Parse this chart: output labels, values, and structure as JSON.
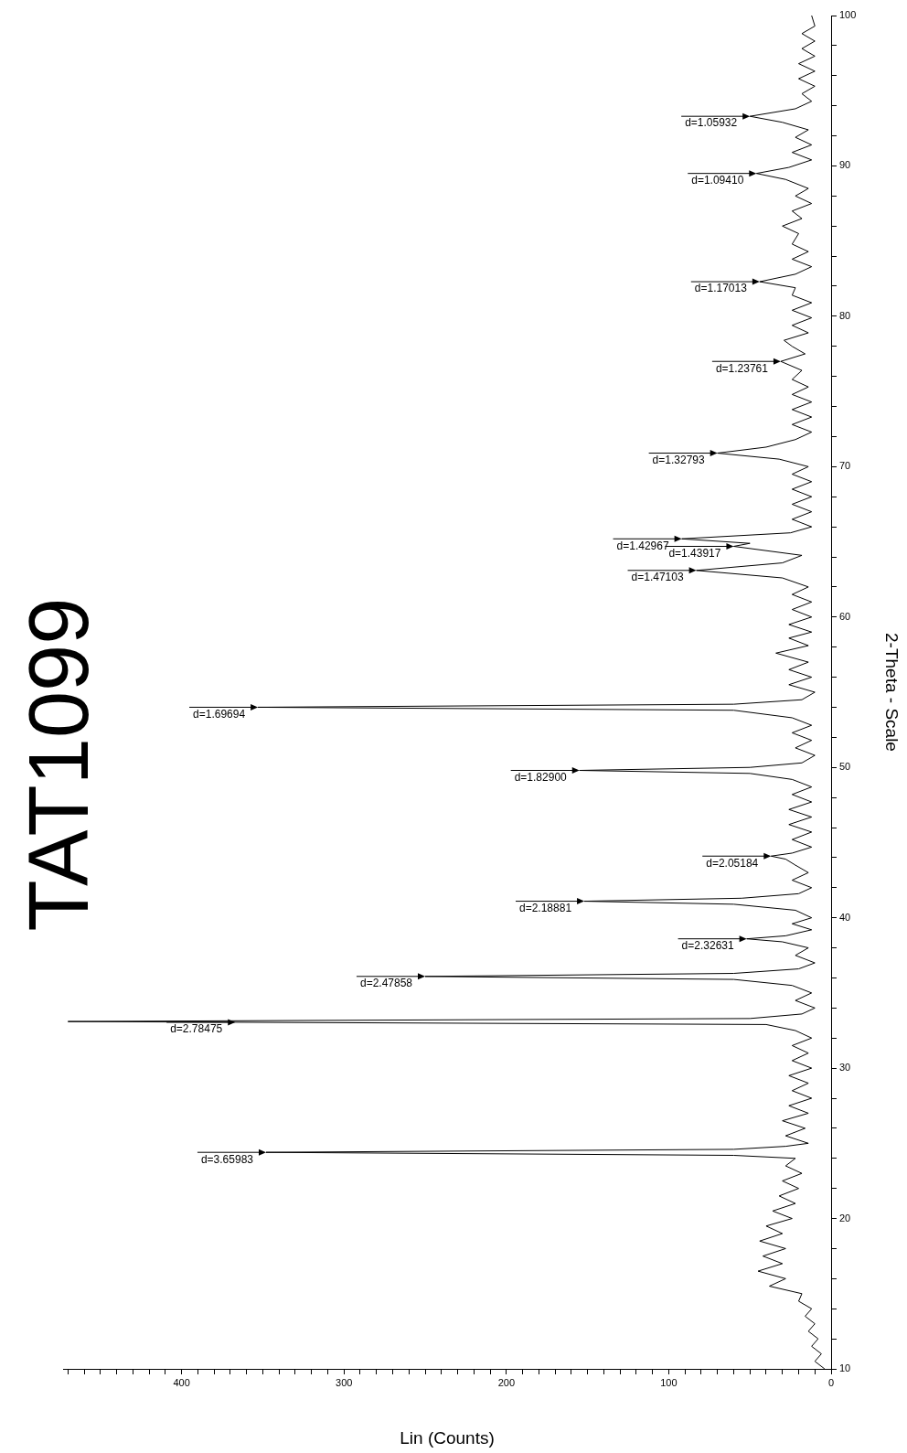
{
  "chart_data": {
    "type": "line",
    "orientation": "horizontal",
    "title": "TAT1099",
    "xlabel": "Lin (Counts)",
    "ylabel": "2-Theta - Scale",
    "color": "#000000",
    "marker": "none",
    "xlim": [
      473,
      0
    ],
    "ylim": [
      10,
      100
    ],
    "yticks": [
      10,
      {
        "value": 12,
        "label": null
      },
      {
        "value": 14,
        "label": null
      },
      {
        "value": 16,
        "label": null
      },
      {
        "value": 18,
        "label": null
      },
      20,
      {
        "value": 22,
        "label": null
      },
      {
        "value": 24,
        "label": null
      },
      {
        "value": 26,
        "label": null
      },
      {
        "value": 28,
        "label": null
      },
      30,
      {
        "value": 32,
        "label": null
      },
      {
        "value": 34,
        "label": null
      },
      {
        "value": 36,
        "label": null
      },
      {
        "value": 38,
        "label": null
      },
      40,
      {
        "value": 42,
        "label": null
      },
      {
        "value": 44,
        "label": null
      },
      {
        "value": 46,
        "label": null
      },
      {
        "value": 48,
        "label": null
      },
      50,
      {
        "value": 52,
        "label": null
      },
      {
        "value": 54,
        "label": null
      },
      {
        "value": 56,
        "label": null
      },
      {
        "value": 58,
        "label": null
      },
      60,
      {
        "value": 62,
        "label": null
      },
      {
        "value": 64,
        "label": null
      },
      {
        "value": 66,
        "label": null
      },
      {
        "value": 68,
        "label": null
      },
      70,
      {
        "value": 72,
        "label": null
      },
      {
        "value": 74,
        "label": null
      },
      {
        "value": 76,
        "label": null
      },
      {
        "value": 78,
        "label": null
      },
      80,
      {
        "value": 82,
        "label": null
      },
      {
        "value": 84,
        "label": null
      },
      {
        "value": 86,
        "label": null
      },
      {
        "value": 88,
        "label": null
      },
      90,
      {
        "value": 92,
        "label": null
      },
      {
        "value": 94,
        "label": null
      },
      {
        "value": 96,
        "label": null
      },
      {
        "value": 98,
        "label": null
      },
      100
    ],
    "xticks": [
      0,
      {
        "value": 10,
        "label": null
      },
      {
        "value": 20,
        "label": null
      },
      {
        "value": 30,
        "label": null
      },
      {
        "value": 40,
        "label": null
      },
      {
        "value": 50,
        "label": null
      },
      {
        "value": 60,
        "label": null
      },
      {
        "value": 70,
        "label": null
      },
      {
        "value": 80,
        "label": null
      },
      {
        "value": 90,
        "label": null
      },
      100,
      {
        "value": 110,
        "label": null
      },
      {
        "value": 120,
        "label": null
      },
      {
        "value": 130,
        "label": null
      },
      {
        "value": 140,
        "label": null
      },
      {
        "value": 150,
        "label": null
      },
      {
        "value": 160,
        "label": null
      },
      {
        "value": 170,
        "label": null
      },
      {
        "value": 180,
        "label": null
      },
      {
        "value": 190,
        "label": null
      },
      200,
      {
        "value": 210,
        "label": null
      },
      {
        "value": 220,
        "label": null
      },
      {
        "value": 230,
        "label": null
      },
      {
        "value": 240,
        "label": null
      },
      {
        "value": 250,
        "label": null
      },
      {
        "value": 260,
        "label": null
      },
      {
        "value": 270,
        "label": null
      },
      {
        "value": 280,
        "label": null
      },
      {
        "value": 290,
        "label": null
      },
      300,
      {
        "value": 310,
        "label": null
      },
      {
        "value": 320,
        "label": null
      },
      {
        "value": 330,
        "label": null
      },
      {
        "value": 340,
        "label": null
      },
      {
        "value": 350,
        "label": null
      },
      {
        "value": 360,
        "label": null
      },
      {
        "value": 370,
        "label": null
      },
      {
        "value": 380,
        "label": null
      },
      {
        "value": 390,
        "label": null
      },
      400,
      {
        "value": 410,
        "label": null
      },
      {
        "value": 420,
        "label": null
      },
      {
        "value": 430,
        "label": null
      },
      {
        "value": 440,
        "label": null
      },
      {
        "value": 450,
        "label": null
      },
      {
        "value": 460,
        "label": null
      },
      {
        "value": 470,
        "label": null
      }
    ],
    "x": [
      10,
      10.5,
      11,
      11.5,
      12,
      12.5,
      13,
      13.5,
      14,
      14.5,
      15,
      15.5,
      16,
      16.5,
      17,
      17.5,
      18,
      18.5,
      19,
      19.5,
      20,
      20.5,
      21,
      21.5,
      22,
      22.5,
      23,
      23.5,
      24,
      24.2,
      24.4,
      24.6,
      24.8,
      25,
      25.5,
      26,
      26.5,
      27,
      27.5,
      28,
      28.5,
      29,
      29.5,
      30,
      30.5,
      31,
      31.5,
      32,
      32.5,
      32.9,
      33.1,
      33.3,
      33.6,
      34,
      34.5,
      35,
      35.5,
      35.9,
      36.1,
      36.3,
      36.6,
      37,
      37.5,
      38,
      38.4,
      38.6,
      38.8,
      39.2,
      39.6,
      40,
      40.5,
      40.9,
      41.1,
      41.3,
      41.6,
      42,
      42.5,
      43,
      43.5,
      43.9,
      44.1,
      44.3,
      44.7,
      45.2,
      45.7,
      46.2,
      46.7,
      47.2,
      47.7,
      48.2,
      48.7,
      49.2,
      49.6,
      49.8,
      50,
      50.3,
      50.8,
      51.3,
      51.8,
      52.3,
      52.8,
      53.3,
      53.8,
      54,
      54.2,
      54.5,
      55,
      55.5,
      56,
      56.5,
      57,
      57.6,
      58.1,
      58.6,
      59,
      59.5,
      60,
      60.5,
      61,
      61.5,
      62,
      62.6,
      63.1,
      63.6,
      64.1,
      64.7,
      64.9,
      65.2,
      65.6,
      66,
      66.5,
      67,
      67.5,
      68,
      68.5,
      69,
      69.5,
      70,
      70.5,
      70.9,
      71.3,
      71.8,
      72.3,
      72.8,
      73.3,
      73.8,
      74.3,
      74.8,
      75.3,
      75.8,
      76.4,
      77,
      77.5,
      78,
      78.4,
      78.9,
      79.4,
      79.9,
      80.4,
      80.9,
      81.4,
      81.9,
      82.3,
      82.8,
      83.3,
      83.8,
      84.3,
      84.8,
      85.5,
      86,
      86.5,
      87,
      87.5,
      88,
      88.5,
      89.1,
      89.5,
      89.9,
      90.4,
      90.9,
      91.4,
      91.9,
      92.4,
      92.9,
      93.3,
      93.8,
      94.3,
      94.8,
      95.3,
      95.8,
      96.3,
      96.8,
      97.3,
      97.8,
      98.3,
      98.8,
      99.3,
      100
    ],
    "values": [
      4,
      10,
      6,
      12,
      8,
      14,
      10,
      16,
      12,
      20,
      18,
      38,
      28,
      45,
      30,
      42,
      28,
      44,
      30,
      40,
      24,
      36,
      22,
      32,
      20,
      30,
      18,
      28,
      22,
      60,
      348,
      60,
      28,
      14,
      28,
      16,
      30,
      14,
      26,
      12,
      24,
      14,
      26,
      12,
      24,
      14,
      24,
      12,
      22,
      40,
      470,
      50,
      18,
      10,
      22,
      12,
      24,
      60,
      250,
      60,
      20,
      10,
      22,
      14,
      30,
      52,
      28,
      12,
      24,
      12,
      22,
      60,
      152,
      55,
      20,
      12,
      24,
      14,
      22,
      28,
      37,
      24,
      12,
      24,
      12,
      26,
      12,
      26,
      12,
      24,
      12,
      24,
      50,
      155,
      50,
      18,
      10,
      22,
      12,
      24,
      12,
      24,
      60,
      353,
      60,
      18,
      10,
      26,
      12,
      26,
      14,
      34,
      14,
      26,
      12,
      26,
      12,
      24,
      12,
      24,
      14,
      30,
      83,
      30,
      18,
      60,
      50,
      92,
      25,
      12,
      24,
      12,
      24,
      12,
      24,
      12,
      24,
      14,
      32,
      70,
      40,
      22,
      12,
      24,
      12,
      24,
      12,
      24,
      14,
      24,
      18,
      31,
      16,
      24,
      29,
      14,
      24,
      12,
      24,
      12,
      24,
      22,
      44,
      22,
      12,
      24,
      14,
      24,
      20,
      30,
      18,
      24,
      12,
      22,
      14,
      28,
      46,
      26,
      12,
      24,
      12,
      22,
      14,
      30,
      50,
      22,
      12,
      18,
      10,
      20,
      10,
      20,
      10,
      18,
      10,
      18,
      10,
      12
    ],
    "annotations": [
      {
        "text": "d=3.65983",
        "x": 348,
        "y": 24.4
      },
      {
        "text": "d=2.78475",
        "x": 367,
        "y": 33.05
      },
      {
        "text": "d=2.47858",
        "x": 250,
        "y": 36.1
      },
      {
        "text": "d=2.32631",
        "x": 52,
        "y": 38.6
      },
      {
        "text": "d=2.18881",
        "x": 152,
        "y": 41.1
      },
      {
        "text": "d=2.05184",
        "x": 37,
        "y": 44.1
      },
      {
        "text": "d=1.82900",
        "x": 155,
        "y": 49.8
      },
      {
        "text": "d=1.69694",
        "x": 353,
        "y": 54
      },
      {
        "text": "d=1.47103",
        "x": 83,
        "y": 63.1
      },
      {
        "text": "d=1.43917",
        "x": 60,
        "y": 64.7
      },
      {
        "text": "d=1.42967",
        "x": 92,
        "y": 65.2
      },
      {
        "text": "d=1.32793",
        "x": 70,
        "y": 70.9
      },
      {
        "text": "d=1.23761",
        "x": 31,
        "y": 77
      },
      {
        "text": "d=1.17013",
        "x": 44,
        "y": 82.3
      },
      {
        "text": "d=1.09410",
        "x": 46,
        "y": 89.5
      },
      {
        "text": "d=1.05932",
        "x": 50,
        "y": 93.3
      }
    ]
  }
}
